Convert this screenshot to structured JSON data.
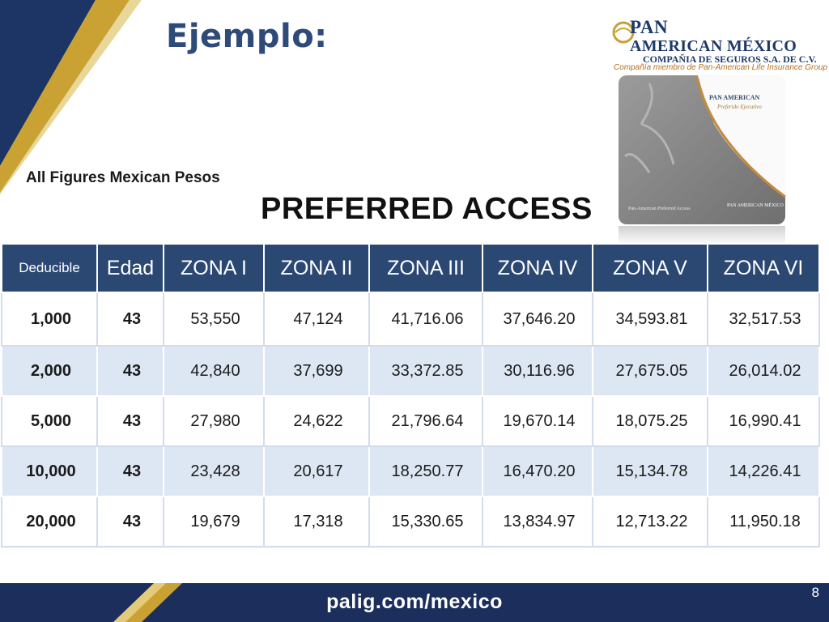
{
  "slide": {
    "title": "Ejemplo:",
    "note": "All Figures Mexican Pesos",
    "subtitle": "PREFERRED ACCESS",
    "page_number": "8",
    "footer_url": "palig.com/mexico"
  },
  "logo": {
    "line1": "PAN",
    "line2": "AMERICAN MÉXICO",
    "line3": "COMPAÑIA DE SEGUROS S.A. DE C.V.",
    "line4": "Compañía miembro de Pan-American Life Insurance Group"
  },
  "brochure": {
    "title": "PAN AMERICAN",
    "subtitle": "Preferido Ejecutivo",
    "footer": "Pan-American Preferred Access",
    "footer_logo": "PAN AMERICAN MÉXICO"
  },
  "colors": {
    "title": "#2d4a79",
    "header_bg": "#2b4873",
    "row_alt_bg": "#dde7f4",
    "gold": "#c9a233",
    "navy": "#1c2f5c"
  },
  "table": {
    "headers": [
      "Deducible",
      "Edad",
      "ZONA I",
      "ZONA II",
      "ZONA III",
      "ZONA IV",
      "ZONA V",
      "ZONA VI"
    ],
    "rows": [
      [
        "1,000",
        "43",
        "53,550",
        "47,124",
        "41,716.06",
        "37,646.20",
        "34,593.81",
        "32,517.53"
      ],
      [
        "2,000",
        "43",
        "42,840",
        "37,699",
        "33,372.85",
        "30,116.96",
        "27,675.05",
        "26,014.02"
      ],
      [
        "5,000",
        "43",
        "27,980",
        "24,622",
        "21,796.64",
        "19,670.14",
        "18,075.25",
        "16,990.41"
      ],
      [
        "10,000",
        "43",
        "23,428",
        "20,617",
        "18,250.77",
        "16,470.20",
        "15,134.78",
        "14,226.41"
      ],
      [
        "20,000",
        "43",
        "19,679",
        "17,318",
        "15,330.65",
        "13,834.97",
        "12,713.22",
        "11,950.18"
      ]
    ]
  }
}
